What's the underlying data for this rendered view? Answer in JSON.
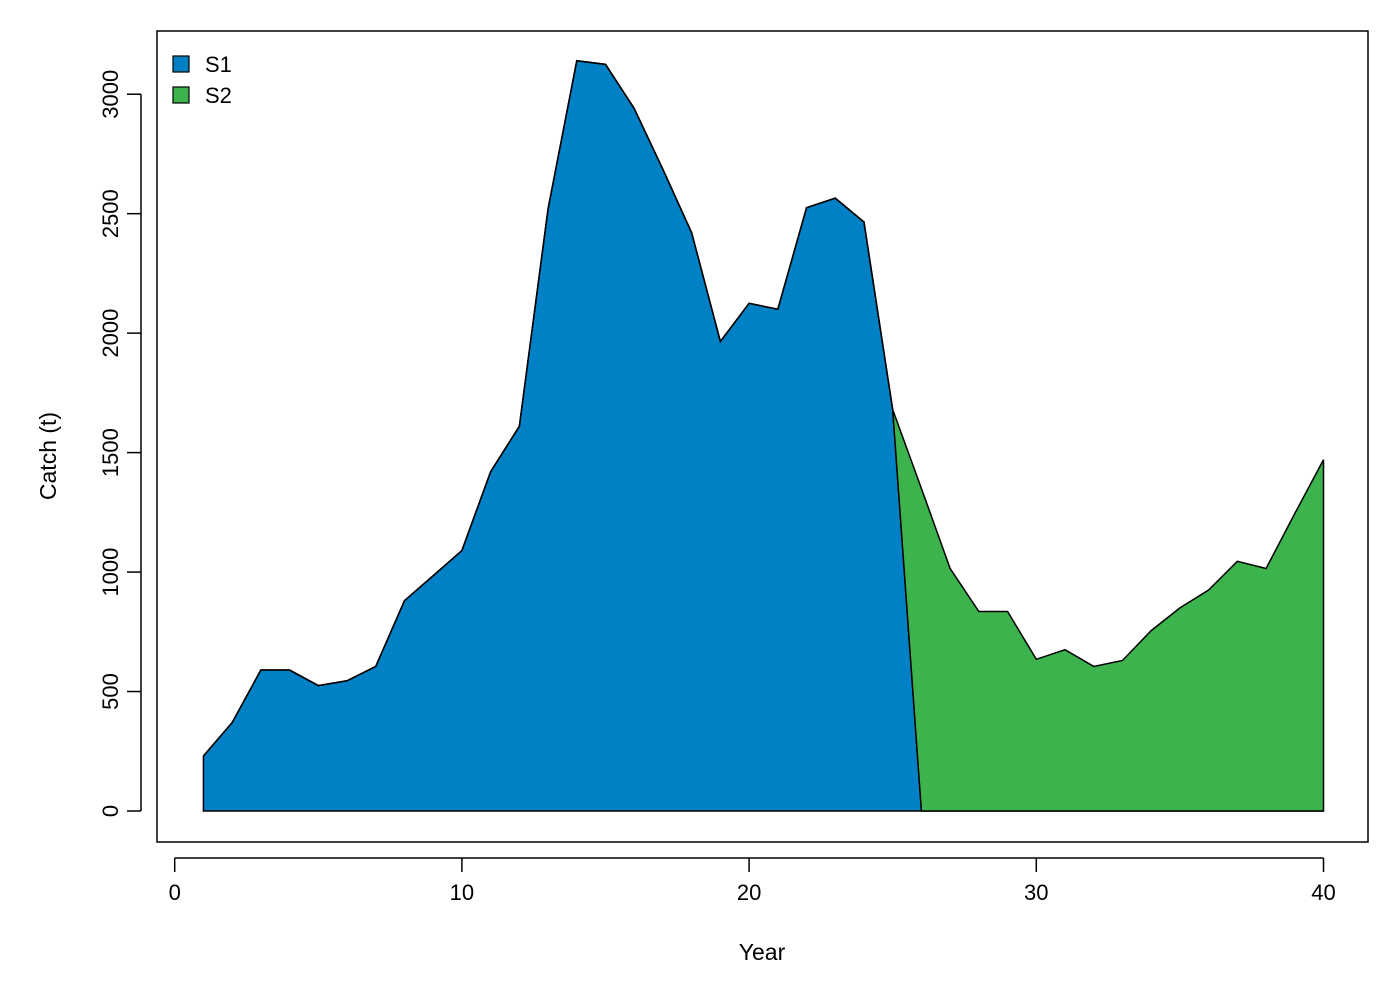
{
  "chart_data": {
    "type": "area",
    "stacked": true,
    "title": "",
    "xlabel": "Year",
    "ylabel": "Catch (t)",
    "xlim": [
      0,
      40
    ],
    "ylim": [
      0,
      3200
    ],
    "x_ticks": [
      0,
      10,
      20,
      30,
      40
    ],
    "y_ticks": [
      0,
      500,
      1000,
      1500,
      2000,
      2500,
      3000
    ],
    "x_tick_labels": [
      "0",
      "10",
      "20",
      "30",
      "40"
    ],
    "y_tick_labels": [
      "0",
      "500",
      "1000",
      "1500",
      "2000",
      "2500",
      "3000"
    ],
    "grid": false,
    "legend_position": "top-left",
    "x": [
      1,
      2,
      3,
      4,
      5,
      6,
      7,
      8,
      9,
      10,
      11,
      12,
      13,
      14,
      15,
      16,
      17,
      18,
      19,
      20,
      21,
      22,
      23,
      24,
      25,
      26,
      27,
      28,
      29,
      30,
      31,
      32,
      33,
      34,
      35,
      36,
      37,
      38,
      39,
      40
    ],
    "series": [
      {
        "name": "S1",
        "color": "#0080c5",
        "values": [
          230,
          370,
          590,
          590,
          525,
          545,
          605,
          880,
          985,
          1090,
          1420,
          1610,
          2520,
          3140,
          3125,
          2940,
          2685,
          2420,
          1965,
          2125,
          2100,
          2525,
          2565,
          2465,
          1680,
          0,
          0,
          0,
          0,
          0,
          0,
          0,
          0,
          0,
          0,
          0,
          0,
          0,
          0,
          0
        ]
      },
      {
        "name": "S2",
        "color": "#3db34d",
        "values": [
          0,
          0,
          0,
          0,
          0,
          0,
          0,
          0,
          0,
          0,
          0,
          0,
          0,
          0,
          0,
          0,
          0,
          0,
          0,
          0,
          0,
          0,
          0,
          0,
          0,
          1350,
          1015,
          835,
          835,
          635,
          675,
          605,
          630,
          755,
          850,
          925,
          1045,
          1015,
          1245,
          1470
        ]
      }
    ]
  }
}
